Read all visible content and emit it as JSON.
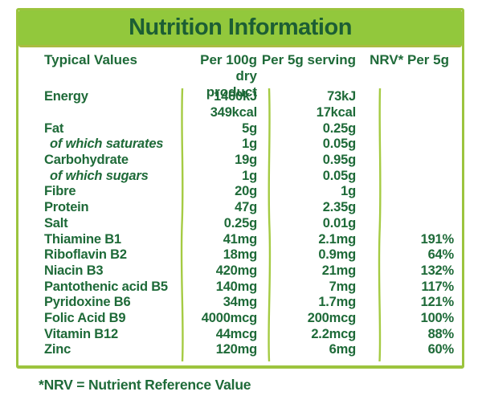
{
  "title": "Nutrition Information",
  "columns": {
    "typical_values": "Typical Values",
    "per_100g_line1": "Per 100g",
    "per_100g_line2": "dry product",
    "per_5g": "Per 5g serving",
    "nrv": "NRV* Per 5g"
  },
  "rows": [
    {
      "label": "Energy",
      "style": "normal",
      "per100g": "1460kJ",
      "per5g": "73kJ",
      "nrv": ""
    },
    {
      "label": "",
      "style": "normal",
      "per100g": "349kcal",
      "per5g": "17kcal",
      "nrv": ""
    },
    {
      "label": "Fat",
      "style": "normal",
      "per100g": "5g",
      "per5g": "0.25g",
      "nrv": ""
    },
    {
      "label": "of which saturates",
      "style": "sub",
      "per100g": "1g",
      "per5g": "0.05g",
      "nrv": ""
    },
    {
      "label": "Carbohydrate",
      "style": "normal",
      "per100g": "19g",
      "per5g": "0.95g",
      "nrv": ""
    },
    {
      "label": "of which sugars",
      "style": "sub",
      "per100g": "1g",
      "per5g": "0.05g",
      "nrv": ""
    },
    {
      "label": "Fibre",
      "style": "normal",
      "per100g": "20g",
      "per5g": "1g",
      "nrv": ""
    },
    {
      "label": "Protein",
      "style": "normal",
      "per100g": "47g",
      "per5g": "2.35g",
      "nrv": ""
    },
    {
      "label": "Salt",
      "style": "normal",
      "per100g": "0.25g",
      "per5g": "0.01g",
      "nrv": ""
    },
    {
      "label": "Thiamine B1",
      "style": "normal",
      "per100g": "41mg",
      "per5g": "2.1mg",
      "nrv": "191%"
    },
    {
      "label": "Riboflavin B2",
      "style": "normal",
      "per100g": "18mg",
      "per5g": "0.9mg",
      "nrv": "64%"
    },
    {
      "label": "Niacin B3",
      "style": "normal",
      "per100g": "420mg",
      "per5g": "21mg",
      "nrv": "132%"
    },
    {
      "label": "Pantothenic acid B5",
      "style": "normal",
      "per100g": "140mg",
      "per5g": "7mg",
      "nrv": "117%"
    },
    {
      "label": "Pyridoxine B6",
      "style": "normal",
      "per100g": "34mg",
      "per5g": "1.7mg",
      "nrv": "121%"
    },
    {
      "label": "Folic Acid B9",
      "style": "normal",
      "per100g": "4000mcg",
      "per5g": "200mcg",
      "nrv": "100%"
    },
    {
      "label": "Vitamin B12",
      "style": "normal",
      "per100g": "44mcg",
      "per5g": "2.2mcg",
      "nrv": "88%"
    },
    {
      "label": "Zinc",
      "style": "normal",
      "per100g": "120mg",
      "per5g": "6mg",
      "nrv": "60%"
    }
  ],
  "footnote": "*NRV = Nutrient Reference Value",
  "colors": {
    "band": "#92c83c",
    "band_edge": "#a9bc41",
    "border": "#9cc43e",
    "separator": "#a5cb43",
    "text": "#1e6a38",
    "title": "#1c5e34",
    "background": "#ffffff"
  }
}
